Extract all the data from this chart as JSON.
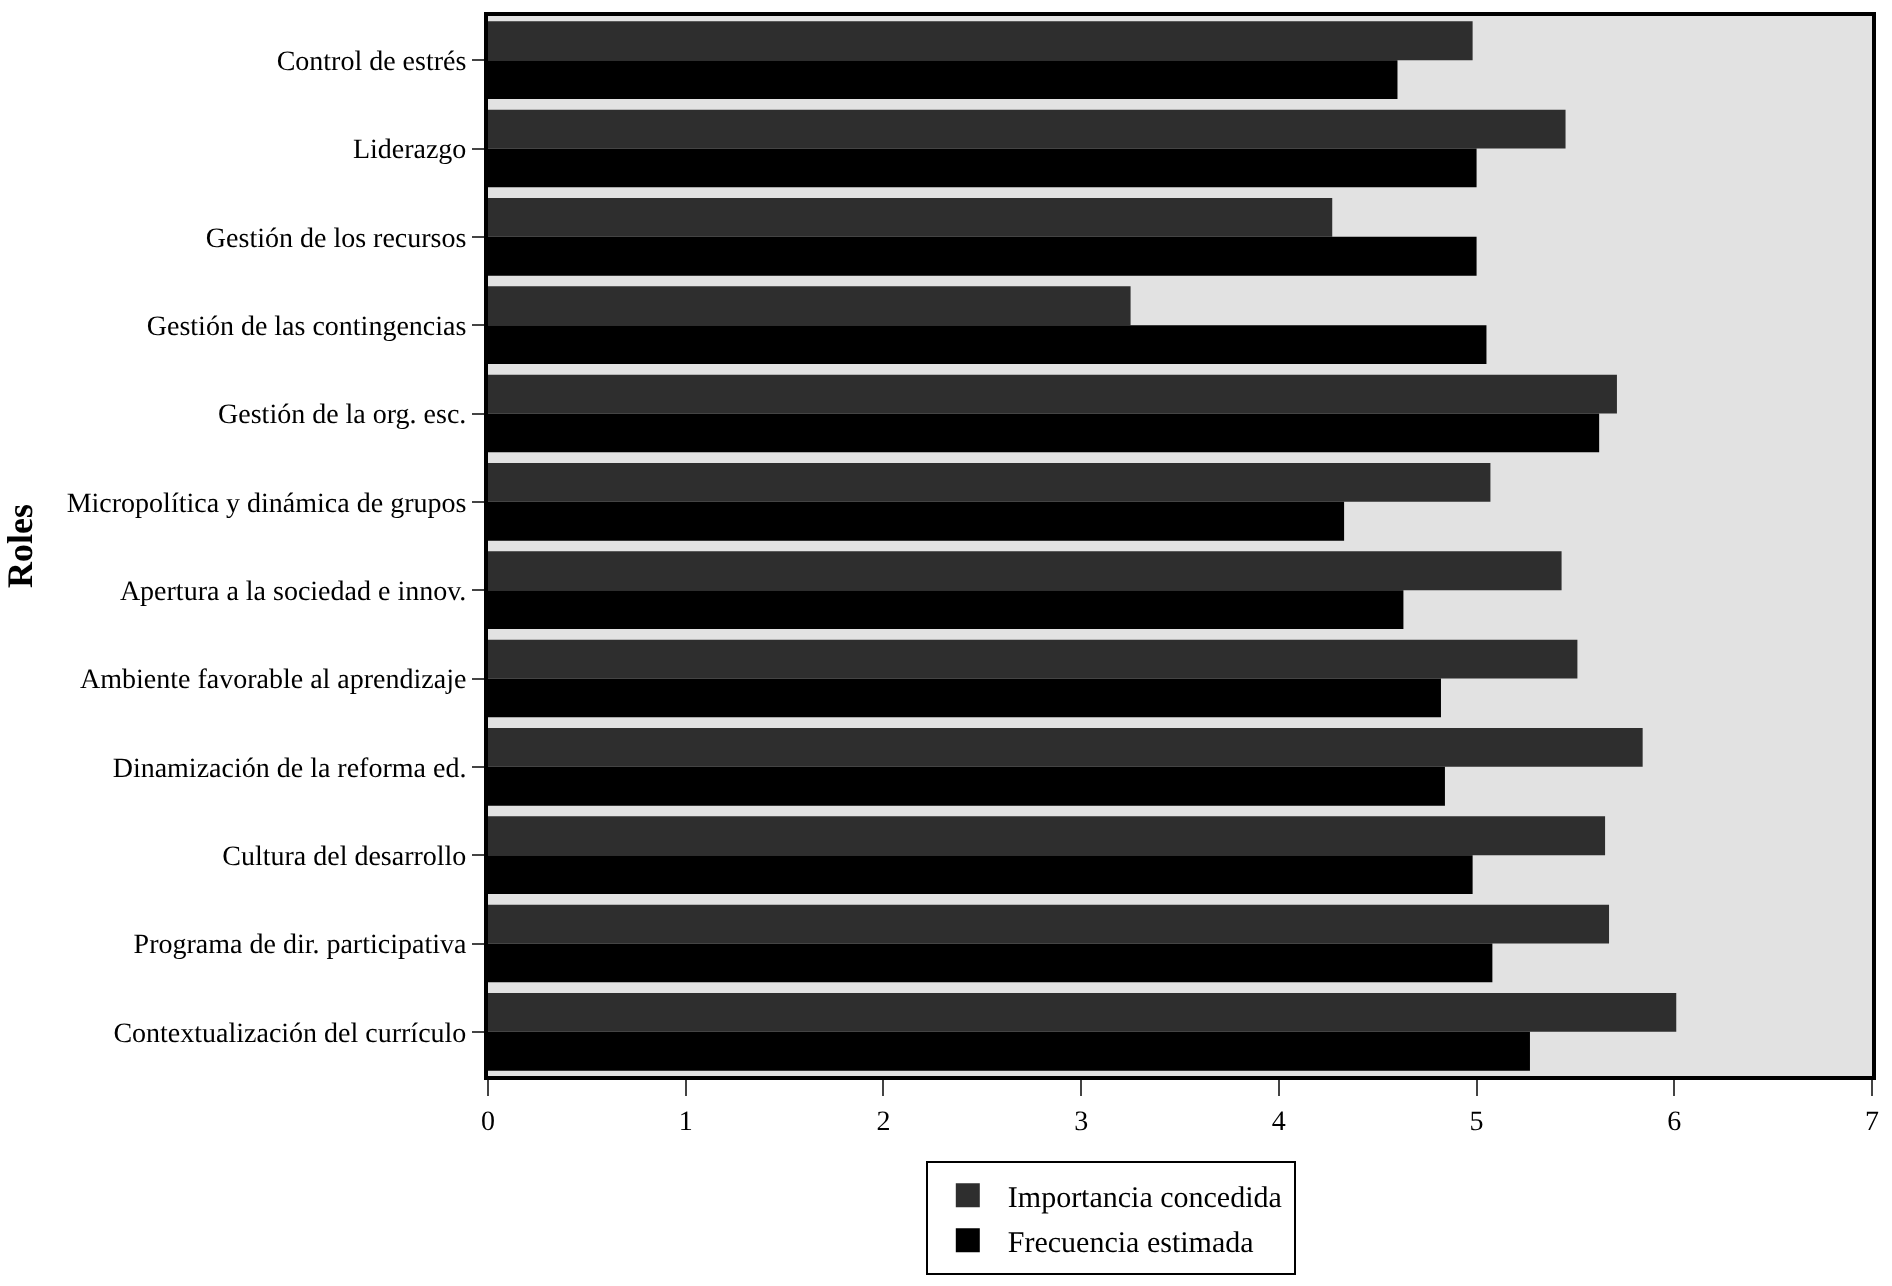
{
  "chart_data": {
    "type": "bar",
    "orientation": "horizontal",
    "ylabel": "Roles",
    "categories": [
      "Control de estrés",
      "Liderazgo",
      "Gestión de los recursos",
      "Gestión de las contingencias",
      "Gestión de la org. esc.",
      "Micropolítica y dinámica de grupos",
      "Apertura a la sociedad e innov.",
      "Ambiente favorable al aprendizaje",
      "Dinamización de la reforma ed.",
      "Cultura del desarrollo",
      "Programa de dir. participativa",
      "Contextualización del currículo"
    ],
    "series": [
      {
        "name": "Importancia concedida",
        "color": "#2e2e2e",
        "values": [
          4.98,
          5.45,
          4.27,
          3.25,
          5.71,
          5.07,
          5.43,
          5.51,
          5.84,
          5.65,
          5.67,
          6.01
        ]
      },
      {
        "name": "Frecuencia estimada",
        "color": "#000000",
        "values": [
          4.6,
          5.0,
          5.0,
          5.05,
          5.62,
          4.33,
          4.63,
          4.82,
          4.84,
          4.98,
          5.08,
          5.27
        ]
      }
    ],
    "xlim": [
      0,
      7
    ],
    "xticks": [
      0,
      1,
      2,
      3,
      4,
      5,
      6,
      7
    ],
    "grid": false,
    "legend": "bottom"
  }
}
